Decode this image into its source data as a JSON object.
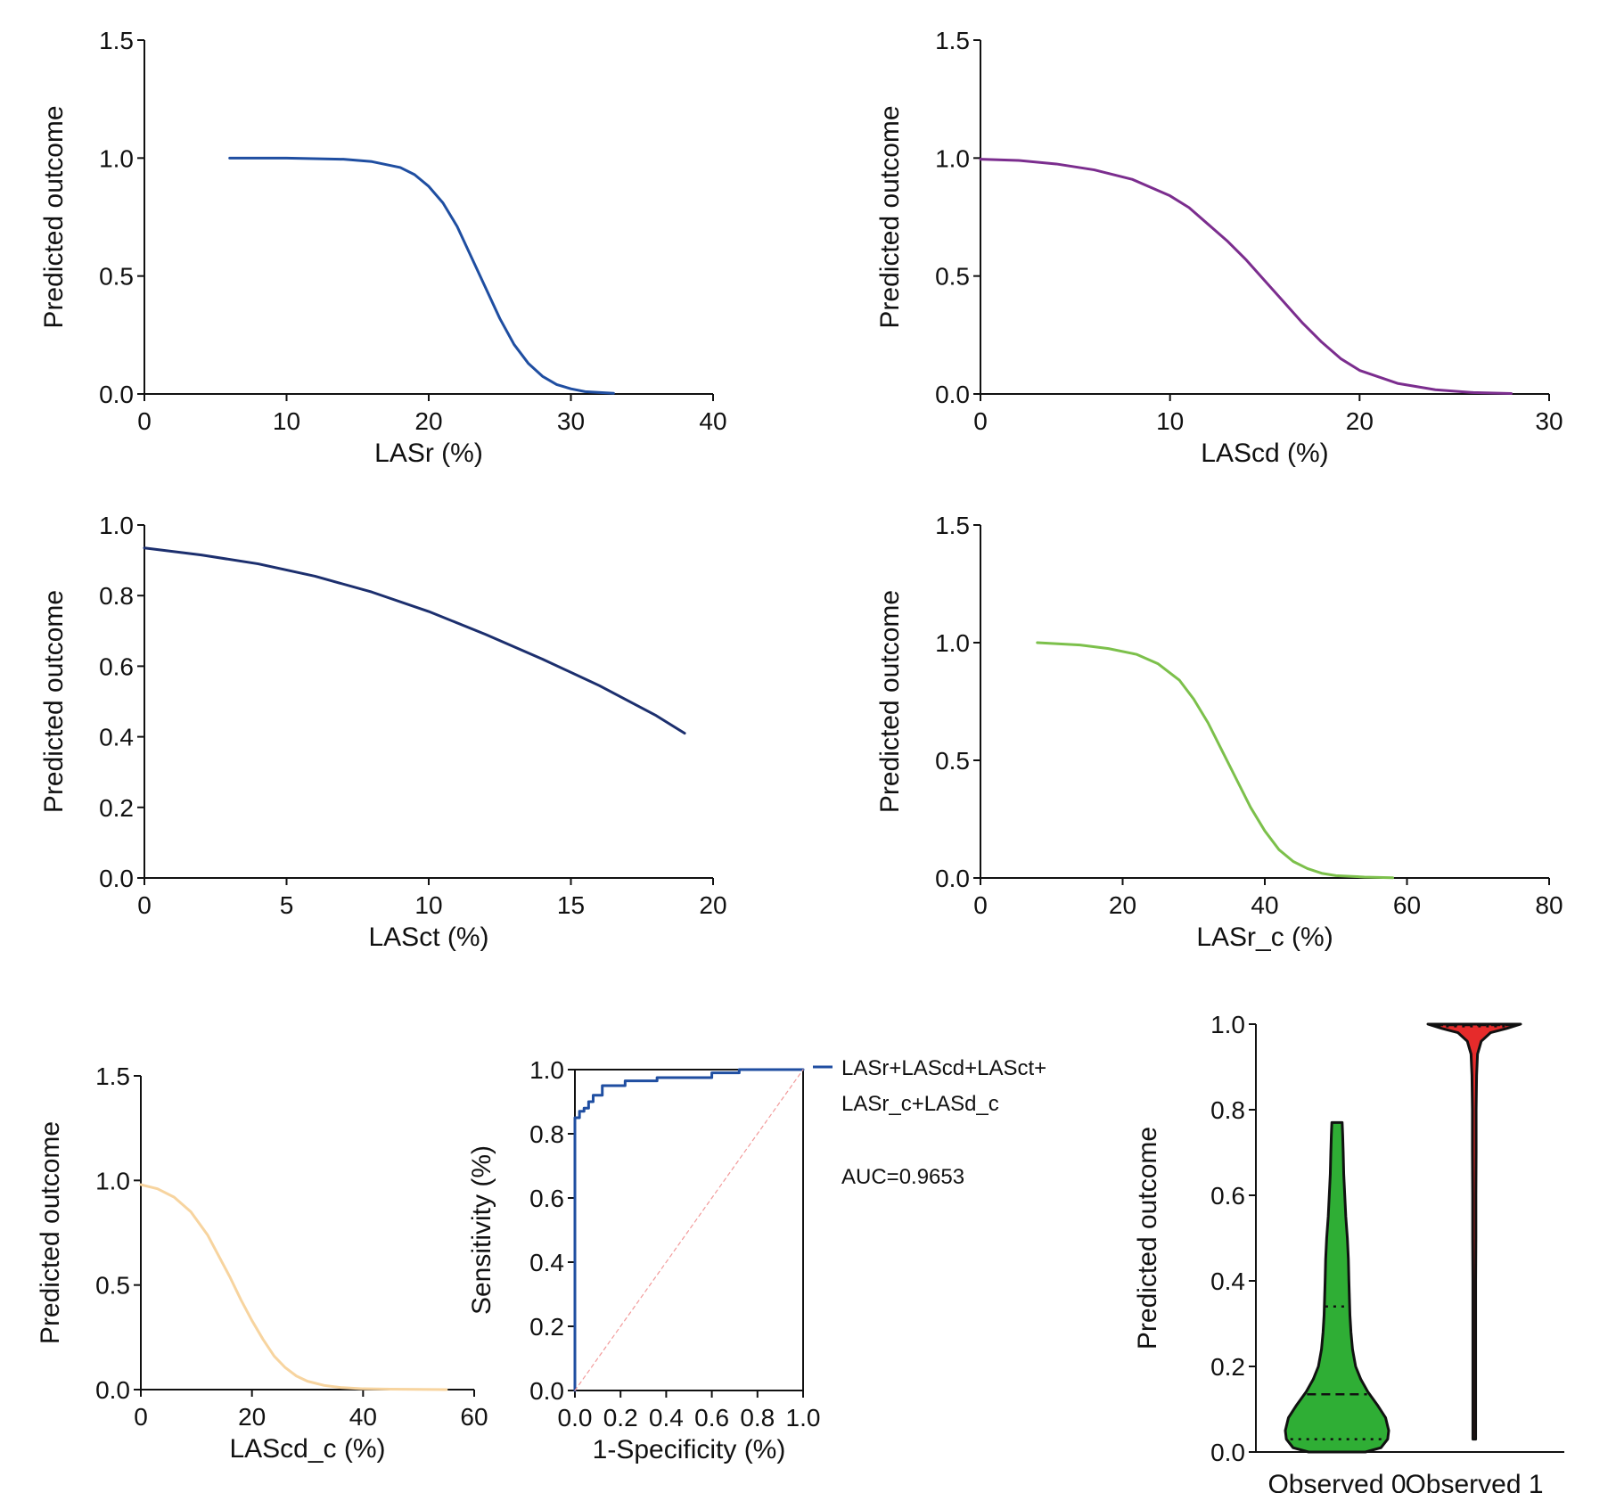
{
  "chart_data": [
    {
      "id": "lasr",
      "type": "line",
      "xlabel": "LASr (%)",
      "ylabel": "Predicted outcome",
      "xlim": [
        0,
        40
      ],
      "ylim": [
        0,
        1.5
      ],
      "xticks": [
        0,
        10,
        20,
        30,
        40
      ],
      "yticks": [
        0.0,
        0.5,
        1.0,
        1.5
      ],
      "xtick_labels": [
        "0",
        "10",
        "20",
        "30",
        "40"
      ],
      "ytick_labels": [
        "0.0",
        "0.5",
        "1.0",
        "1.5"
      ],
      "series": [
        {
          "color": "#1f4ea1",
          "x": [
            6,
            10,
            14,
            16,
            18,
            19,
            20,
            21,
            22,
            23,
            24,
            25,
            26,
            27,
            28,
            29,
            30,
            31,
            33
          ],
          "y": [
            1.0,
            1.0,
            0.995,
            0.985,
            0.96,
            0.93,
            0.88,
            0.81,
            0.71,
            0.58,
            0.45,
            0.32,
            0.21,
            0.13,
            0.075,
            0.04,
            0.022,
            0.01,
            0.003
          ]
        }
      ]
    },
    {
      "id": "lascd",
      "type": "line",
      "xlabel": "LAScd (%)",
      "ylabel": "Predicted outcome",
      "xlim": [
        0,
        30
      ],
      "ylim": [
        0,
        1.5
      ],
      "xticks": [
        0,
        10,
        20,
        30
      ],
      "yticks": [
        0.0,
        0.5,
        1.0,
        1.5
      ],
      "xtick_labels": [
        "0",
        "10",
        "20",
        "30"
      ],
      "ytick_labels": [
        "0.0",
        "0.5",
        "1.0",
        "1.5"
      ],
      "series": [
        {
          "color": "#7b2d8e",
          "x": [
            0,
            2,
            4,
            6,
            8,
            10,
            11,
            12,
            13,
            14,
            15,
            16,
            17,
            18,
            19,
            20,
            22,
            24,
            26,
            28
          ],
          "y": [
            0.995,
            0.99,
            0.975,
            0.95,
            0.91,
            0.84,
            0.79,
            0.72,
            0.65,
            0.57,
            0.48,
            0.39,
            0.3,
            0.22,
            0.15,
            0.1,
            0.045,
            0.018,
            0.006,
            0.002
          ]
        }
      ]
    },
    {
      "id": "lasct",
      "type": "line",
      "xlabel": "LASct (%)",
      "ylabel": "Predicted outcome",
      "xlim": [
        0,
        20
      ],
      "ylim": [
        0,
        1.0
      ],
      "xticks": [
        0,
        5,
        10,
        15,
        20
      ],
      "yticks": [
        0.0,
        0.2,
        0.4,
        0.6,
        0.8,
        1.0
      ],
      "xtick_labels": [
        "0",
        "5",
        "10",
        "15",
        "20"
      ],
      "ytick_labels": [
        "0.0",
        "0.2",
        "0.4",
        "0.6",
        "0.8",
        "1.0"
      ],
      "series": [
        {
          "color": "#1c2f6e",
          "x": [
            0,
            2,
            4,
            6,
            8,
            10,
            12,
            14,
            16,
            18,
            19
          ],
          "y": [
            0.935,
            0.915,
            0.89,
            0.855,
            0.81,
            0.755,
            0.69,
            0.62,
            0.545,
            0.46,
            0.41
          ]
        }
      ]
    },
    {
      "id": "lasr_c",
      "type": "line",
      "xlabel": "LASr_c (%)",
      "ylabel": "Predicted outcome",
      "xlim": [
        0,
        80
      ],
      "ylim": [
        0,
        1.5
      ],
      "xticks": [
        0,
        20,
        40,
        60,
        80
      ],
      "yticks": [
        0.0,
        0.5,
        1.0,
        1.5
      ],
      "xtick_labels": [
        "0",
        "20",
        "40",
        "60",
        "80"
      ],
      "ytick_labels": [
        "0.0",
        "0.5",
        "1.0",
        "1.5"
      ],
      "series": [
        {
          "color": "#7cc04b",
          "x": [
            8,
            14,
            18,
            22,
            25,
            28,
            30,
            32,
            34,
            36,
            38,
            40,
            42,
            44,
            46,
            48,
            50,
            54,
            58
          ],
          "y": [
            1.0,
            0.99,
            0.975,
            0.95,
            0.91,
            0.84,
            0.76,
            0.66,
            0.54,
            0.42,
            0.3,
            0.2,
            0.12,
            0.07,
            0.04,
            0.02,
            0.01,
            0.004,
            0.001
          ]
        }
      ]
    },
    {
      "id": "lascd_c",
      "type": "line",
      "xlabel": "LAScd_c (%)",
      "ylabel": "Predicted outcome",
      "xlim": [
        0,
        60
      ],
      "ylim": [
        0,
        1.5
      ],
      "xticks": [
        0,
        20,
        40,
        60
      ],
      "yticks": [
        0.0,
        0.5,
        1.0,
        1.5
      ],
      "xtick_labels": [
        "0",
        "20",
        "40",
        "60"
      ],
      "ytick_labels": [
        "0.0",
        "0.5",
        "1.0",
        "1.5"
      ],
      "series": [
        {
          "color": "#f7d49f",
          "x": [
            0,
            3,
            6,
            9,
            12,
            14,
            16,
            18,
            20,
            22,
            24,
            26,
            28,
            30,
            33,
            36,
            40,
            45,
            50,
            55
          ],
          "y": [
            0.98,
            0.96,
            0.92,
            0.85,
            0.74,
            0.64,
            0.54,
            0.43,
            0.33,
            0.24,
            0.16,
            0.105,
            0.065,
            0.04,
            0.02,
            0.01,
            0.004,
            0.002,
            0.001,
            0.0
          ]
        }
      ]
    },
    {
      "id": "roc",
      "type": "line",
      "xlabel": "1-Specificity (%)",
      "ylabel": "Sensitivity (%)",
      "xlim": [
        0,
        1.0
      ],
      "ylim": [
        0,
        1.0
      ],
      "xticks": [
        0,
        0.2,
        0.4,
        0.6,
        0.8,
        1.0
      ],
      "yticks": [
        0,
        0.2,
        0.4,
        0.6,
        0.8,
        1.0
      ],
      "xtick_labels": [
        "0.0",
        "0.2",
        "0.4",
        "0.6",
        "0.8",
        "1.0"
      ],
      "ytick_labels": [
        "0.0",
        "0.2",
        "0.4",
        "0.6",
        "0.8",
        "1.0"
      ],
      "series": [
        {
          "name": "LASr+LAScd+LASct+ LASr_c+LASd_c",
          "color": "#1f4ea1",
          "step": true,
          "x": [
            0,
            0,
            0.02,
            0.02,
            0.04,
            0.04,
            0.06,
            0.06,
            0.08,
            0.08,
            0.12,
            0.12,
            0.22,
            0.22,
            0.36,
            0.36,
            0.6,
            0.6,
            0.72,
            0.72,
            1.0
          ],
          "y": [
            0,
            0.85,
            0.85,
            0.87,
            0.87,
            0.88,
            0.88,
            0.9,
            0.9,
            0.92,
            0.92,
            0.95,
            0.95,
            0.965,
            0.965,
            0.975,
            0.975,
            0.99,
            0.99,
            1.0,
            1.0
          ]
        },
        {
          "name": "",
          "color": "#f29a9a",
          "dash": true,
          "x": [
            0,
            1.0
          ],
          "y": [
            0,
            1.0
          ]
        }
      ],
      "legend": {
        "line1": "LASr+LAScd+LASct+",
        "line2": "LASr_c+LASd_c",
        "auc": "AUC=0.9653"
      }
    },
    {
      "id": "violin",
      "type": "violin",
      "ylabel": "Predicted outcome",
      "ylim": [
        0,
        1.0
      ],
      "yticks": [
        0.0,
        0.2,
        0.4,
        0.6,
        0.8,
        1.0
      ],
      "ytick_labels": [
        "0.0",
        "0.2",
        "0.4",
        "0.6",
        "0.8",
        "1.0"
      ],
      "categories": [
        "Observed 0",
        "Observed 1"
      ],
      "groups": [
        {
          "name": "Observed 0",
          "color": "#2fae35",
          "min": 0.0,
          "max": 0.77,
          "q1": 0.03,
          "median": 0.135,
          "q3": 0.34,
          "profile_y": [
            0.0,
            0.01,
            0.03,
            0.05,
            0.08,
            0.11,
            0.14,
            0.17,
            0.2,
            0.24,
            0.28,
            0.32,
            0.36,
            0.4,
            0.45,
            0.5,
            0.55,
            0.6,
            0.65,
            0.7,
            0.74,
            0.77
          ],
          "profile_w": [
            0.55,
            0.85,
            0.98,
            1.0,
            0.94,
            0.78,
            0.6,
            0.46,
            0.36,
            0.3,
            0.27,
            0.25,
            0.24,
            0.23,
            0.22,
            0.2,
            0.17,
            0.15,
            0.13,
            0.12,
            0.11,
            0.1
          ]
        },
        {
          "name": "Observed 1",
          "color": "#e62b2b",
          "min": 0.03,
          "max": 1.0,
          "q1": 0.995,
          "median": 0.998,
          "q3": 1.0,
          "profile_y": [
            0.03,
            0.1,
            0.2,
            0.3,
            0.4,
            0.5,
            0.6,
            0.7,
            0.8,
            0.88,
            0.93,
            0.96,
            0.98,
            0.99,
            1.0
          ],
          "profile_w": [
            0.03,
            0.03,
            0.03,
            0.03,
            0.03,
            0.035,
            0.035,
            0.04,
            0.04,
            0.05,
            0.07,
            0.15,
            0.35,
            0.7,
            1.0
          ]
        }
      ]
    }
  ]
}
